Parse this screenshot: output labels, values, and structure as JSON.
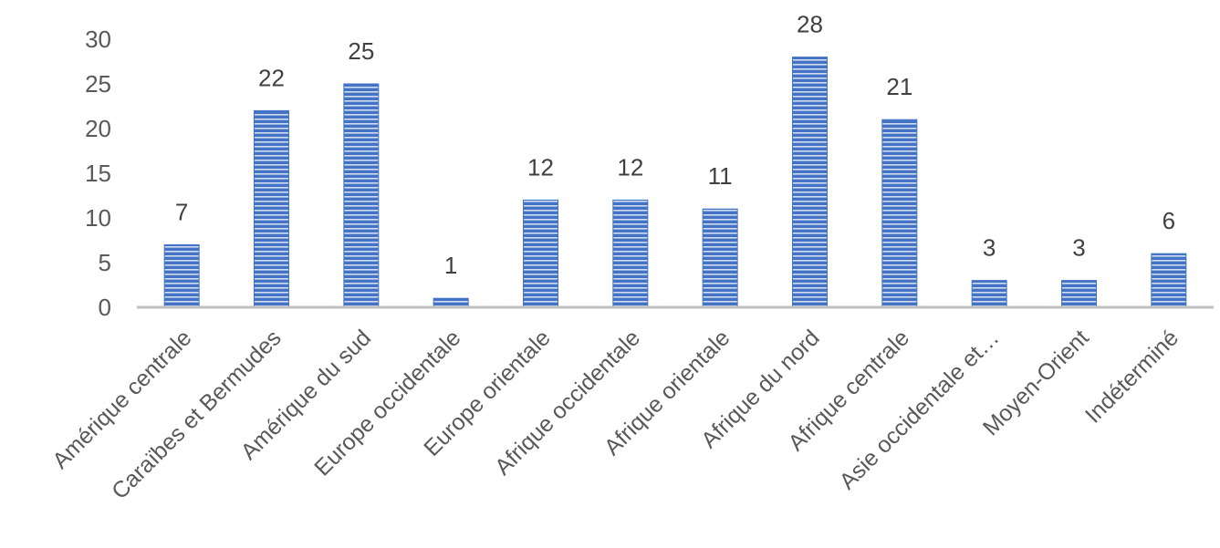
{
  "chart_data": {
    "type": "bar",
    "categories": [
      "Amérique centrale",
      "Caraïbes et Bermudes",
      "Amérique du sud",
      "Europe occidentale",
      "Europe orientale",
      "Afrique occidentale",
      "Afrique orientale",
      "Afrique du nord",
      "Afrique centrale",
      "Asie occidentale et…",
      "Moyen-Orient",
      "Indéterminé"
    ],
    "values": [
      7,
      22,
      25,
      1,
      12,
      12,
      11,
      28,
      21,
      3,
      3,
      6
    ],
    "data_labels": [
      "7",
      "22",
      "25",
      "1",
      "12",
      "12",
      "11",
      "28",
      "21",
      "3",
      "3",
      "6"
    ],
    "yticks": [
      "0",
      "5",
      "10",
      "15",
      "20",
      "25",
      "30"
    ],
    "ylim": [
      0,
      30
    ],
    "title": "",
    "xlabel": "",
    "ylabel": "",
    "grid": false,
    "legend": "none",
    "bar_color": "#4472C4",
    "bar_stripe_color": "#ffffff",
    "axis_color": "#bfbfbf"
  }
}
